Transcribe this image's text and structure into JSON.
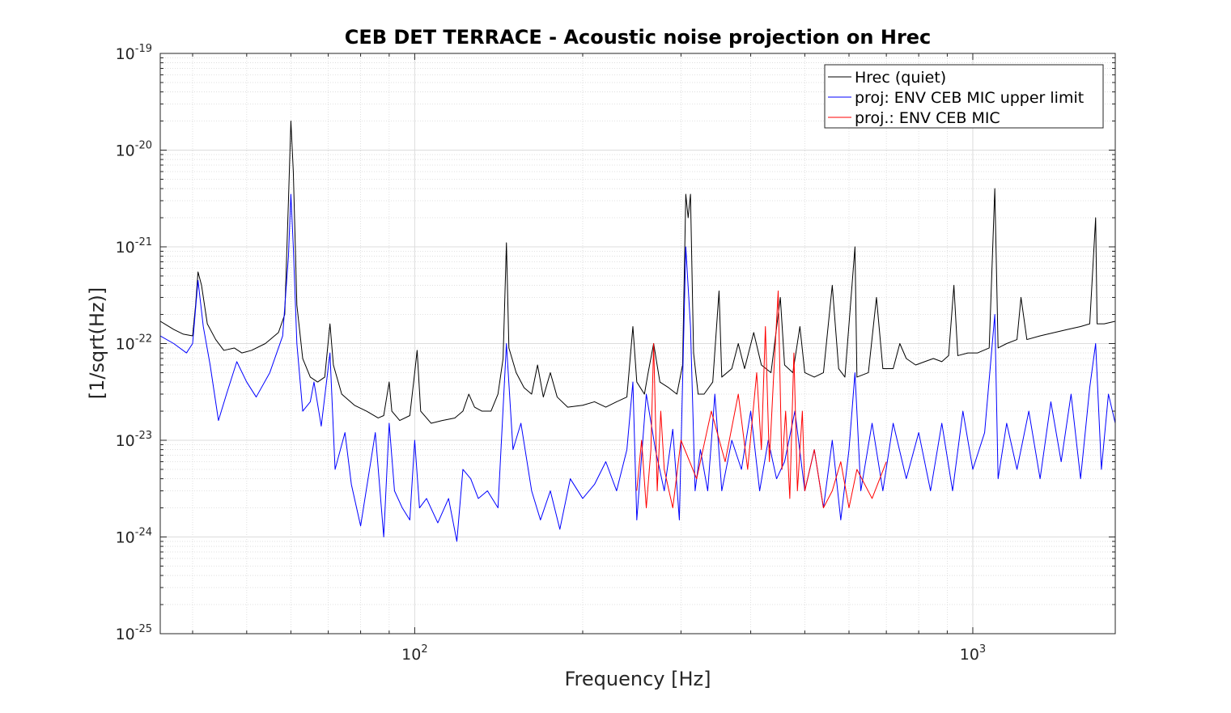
{
  "chart_data": {
    "type": "line",
    "title": "CEB DET TERRACE - Acoustic noise projection on Hrec",
    "xlabel": "Frequency [Hz]",
    "ylabel": "[1/sqrt(Hz)]",
    "xscale": "log",
    "yscale": "log",
    "xlim": [
      35,
      1800
    ],
    "ylim": [
      1e-25,
      1e-19
    ],
    "x_ticks": [
      {
        "value": 100,
        "base": "10",
        "exp": "2"
      },
      {
        "value": 1000,
        "base": "10",
        "exp": "3"
      }
    ],
    "y_ticks": [
      {
        "value": 1e-19,
        "base": "10",
        "exp": "-19"
      },
      {
        "value": 1e-20,
        "base": "10",
        "exp": "-20"
      },
      {
        "value": 1e-21,
        "base": "10",
        "exp": "-21"
      },
      {
        "value": 1e-22,
        "base": "10",
        "exp": "-22"
      },
      {
        "value": 1e-23,
        "base": "10",
        "exp": "-23"
      },
      {
        "value": 1e-24,
        "base": "10",
        "exp": "-24"
      },
      {
        "value": 1e-25,
        "base": "10",
        "exp": "-25"
      }
    ],
    "grid": true,
    "legend_position": "top-right",
    "series": [
      {
        "name": "Hrec (quiet)",
        "color": "#000000",
        "points": [
          [
            35,
            1.7e-22
          ],
          [
            37,
            1.4e-22
          ],
          [
            38.5,
            1.25e-22
          ],
          [
            40,
            1.2e-22
          ],
          [
            40.5,
            2.5e-22
          ],
          [
            40.9,
            5.5e-22
          ],
          [
            41.5,
            4e-22
          ],
          [
            42.5,
            1.6e-22
          ],
          [
            44,
            1.1e-22
          ],
          [
            45.5,
            8.5e-23
          ],
          [
            47.5,
            9e-23
          ],
          [
            49,
            8e-23
          ],
          [
            51,
            8.5e-23
          ],
          [
            54,
            1e-22
          ],
          [
            57,
            1.3e-22
          ],
          [
            58.5,
            2e-22
          ],
          [
            59.4,
            3e-21
          ],
          [
            60,
            2e-20
          ],
          [
            60.6,
            6e-21
          ],
          [
            61.5,
            2.5e-22
          ],
          [
            63,
            7e-23
          ],
          [
            65,
            4.5e-23
          ],
          [
            67,
            4e-23
          ],
          [
            69,
            4.5e-23
          ],
          [
            70.5,
            1.6e-22
          ],
          [
            71.5,
            6e-23
          ],
          [
            74,
            3e-23
          ],
          [
            78,
            2.3e-23
          ],
          [
            82,
            2e-23
          ],
          [
            86,
            1.7e-23
          ],
          [
            88,
            1.8e-23
          ],
          [
            90,
            4e-23
          ],
          [
            91,
            2e-23
          ],
          [
            94,
            1.6e-23
          ],
          [
            98,
            1.8e-23
          ],
          [
            100,
            5e-23
          ],
          [
            101,
            8.5e-23
          ],
          [
            102.5,
            2e-23
          ],
          [
            107,
            1.5e-23
          ],
          [
            112,
            1.6e-23
          ],
          [
            118,
            1.7e-23
          ],
          [
            122,
            2e-23
          ],
          [
            125,
            3e-23
          ],
          [
            128,
            2.2e-23
          ],
          [
            132,
            2e-23
          ],
          [
            137,
            2e-23
          ],
          [
            141,
            3e-23
          ],
          [
            144,
            7e-23
          ],
          [
            146,
            1.1e-21
          ],
          [
            147.5,
            9e-23
          ],
          [
            152,
            5e-23
          ],
          [
            157,
            3.5e-23
          ],
          [
            162,
            3e-23
          ],
          [
            166,
            6e-23
          ],
          [
            170,
            2.8e-23
          ],
          [
            175,
            5e-23
          ],
          [
            180,
            2.8e-23
          ],
          [
            188,
            2.2e-23
          ],
          [
            200,
            2.3e-23
          ],
          [
            210,
            2.5e-23
          ],
          [
            220,
            2.2e-23
          ],
          [
            230,
            2.5e-23
          ],
          [
            240,
            2.8e-23
          ],
          [
            246,
            1.5e-22
          ],
          [
            250,
            4e-23
          ],
          [
            258,
            3e-23
          ],
          [
            262,
            5e-23
          ],
          [
            268,
            1e-22
          ],
          [
            275,
            4e-23
          ],
          [
            285,
            3.5e-23
          ],
          [
            295,
            3e-23
          ],
          [
            302,
            6e-23
          ],
          [
            306,
            3.5e-21
          ],
          [
            309,
            2e-21
          ],
          [
            312,
            3.5e-21
          ],
          [
            316,
            8e-23
          ],
          [
            322,
            3e-23
          ],
          [
            330,
            3e-23
          ],
          [
            342,
            4e-23
          ],
          [
            351,
            3.5e-22
          ],
          [
            355,
            4.5e-23
          ],
          [
            370,
            5.5e-23
          ],
          [
            380,
            1e-22
          ],
          [
            390,
            5.5e-23
          ],
          [
            405,
            1.3e-22
          ],
          [
            418,
            6e-23
          ],
          [
            435,
            5e-23
          ],
          [
            452,
            3e-22
          ],
          [
            460,
            6e-23
          ],
          [
            476,
            5e-23
          ],
          [
            490,
            1.5e-22
          ],
          [
            500,
            5e-23
          ],
          [
            520,
            4.5e-23
          ],
          [
            540,
            5e-23
          ],
          [
            560,
            4e-22
          ],
          [
            575,
            5.5e-23
          ],
          [
            590,
            4.5e-23
          ],
          [
            615,
            1e-21
          ],
          [
            620,
            4.5e-23
          ],
          [
            650,
            5e-23
          ],
          [
            672,
            3e-22
          ],
          [
            690,
            5.5e-23
          ],
          [
            720,
            5.5e-23
          ],
          [
            740,
            1e-22
          ],
          [
            760,
            7e-23
          ],
          [
            790,
            6e-23
          ],
          [
            820,
            6.5e-23
          ],
          [
            850,
            7e-23
          ],
          [
            880,
            6.5e-23
          ],
          [
            905,
            7.5e-23
          ],
          [
            925,
            4e-22
          ],
          [
            940,
            7.5e-23
          ],
          [
            980,
            8e-23
          ],
          [
            1020,
            8e-23
          ],
          [
            1070,
            9e-23
          ],
          [
            1095,
            4e-21
          ],
          [
            1110,
            9e-23
          ],
          [
            1150,
            1e-22
          ],
          [
            1200,
            1.1e-22
          ],
          [
            1220,
            3e-22
          ],
          [
            1250,
            1.1e-22
          ],
          [
            1320,
            1.2e-22
          ],
          [
            1400,
            1.3e-22
          ],
          [
            1480,
            1.4e-22
          ],
          [
            1560,
            1.5e-22
          ],
          [
            1620,
            1.6e-22
          ],
          [
            1660,
            2e-21
          ],
          [
            1670,
            1.6e-22
          ],
          [
            1720,
            1.6e-22
          ],
          [
            1800,
            1.7e-22
          ]
        ]
      },
      {
        "name": "proj: ENV CEB MIC upper limit",
        "color": "#0000ff",
        "points": [
          [
            35,
            1.2e-22
          ],
          [
            37,
            1e-22
          ],
          [
            39,
            8e-23
          ],
          [
            40,
            1e-22
          ],
          [
            40.9,
            4.5e-22
          ],
          [
            41.8,
            1.5e-22
          ],
          [
            43,
            6e-23
          ],
          [
            44.5,
            1.6e-23
          ],
          [
            46,
            3e-23
          ],
          [
            48,
            6.5e-23
          ],
          [
            50,
            4e-23
          ],
          [
            52,
            2.8e-23
          ],
          [
            55,
            5e-23
          ],
          [
            58,
            1.2e-22
          ],
          [
            59.4,
            8e-22
          ],
          [
            60,
            3.5e-21
          ],
          [
            60.6,
            1e-21
          ],
          [
            61.5,
            1e-22
          ],
          [
            63,
            2e-23
          ],
          [
            65,
            2.5e-23
          ],
          [
            66,
            4e-23
          ],
          [
            68,
            1.4e-23
          ],
          [
            70.5,
            8e-23
          ],
          [
            72,
            5e-24
          ],
          [
            75,
            1.2e-23
          ],
          [
            77,
            3.5e-24
          ],
          [
            80,
            1.3e-24
          ],
          [
            83,
            5e-24
          ],
          [
            85,
            1.2e-23
          ],
          [
            88,
            1e-24
          ],
          [
            90,
            1.5e-23
          ],
          [
            92,
            3e-24
          ],
          [
            95,
            2e-24
          ],
          [
            98,
            1.5e-24
          ],
          [
            100,
            1e-23
          ],
          [
            102,
            2e-24
          ],
          [
            105,
            2.5e-24
          ],
          [
            110,
            1.4e-24
          ],
          [
            115,
            2.5e-24
          ],
          [
            119,
            9e-25
          ],
          [
            122,
            5e-24
          ],
          [
            126,
            4e-24
          ],
          [
            130,
            2.5e-24
          ],
          [
            135,
            3e-24
          ],
          [
            141,
            2e-24
          ],
          [
            146,
            1e-22
          ],
          [
            150,
            8e-24
          ],
          [
            155,
            1.5e-23
          ],
          [
            162,
            3e-24
          ],
          [
            168,
            1.5e-24
          ],
          [
            175,
            3e-24
          ],
          [
            182,
            1.2e-24
          ],
          [
            190,
            4e-24
          ],
          [
            200,
            2.5e-24
          ],
          [
            210,
            3.5e-24
          ],
          [
            220,
            6e-24
          ],
          [
            230,
            3e-24
          ],
          [
            240,
            8e-24
          ],
          [
            246,
            4e-23
          ],
          [
            250,
            1.5e-24
          ],
          [
            260,
            3e-23
          ],
          [
            270,
            8e-24
          ],
          [
            280,
            3e-24
          ],
          [
            290,
            1.3e-23
          ],
          [
            298,
            1.5e-24
          ],
          [
            306,
            1e-21
          ],
          [
            312,
            1.5e-22
          ],
          [
            318,
            3e-24
          ],
          [
            325,
            8e-24
          ],
          [
            335,
            3e-24
          ],
          [
            345,
            3e-23
          ],
          [
            355,
            3e-24
          ],
          [
            370,
            1e-23
          ],
          [
            385,
            5e-24
          ],
          [
            400,
            2e-23
          ],
          [
            415,
            3e-24
          ],
          [
            430,
            1e-23
          ],
          [
            445,
            4e-24
          ],
          [
            460,
            6e-24
          ],
          [
            480,
            2e-23
          ],
          [
            500,
            3e-24
          ],
          [
            520,
            8e-24
          ],
          [
            540,
            2e-24
          ],
          [
            560,
            1e-23
          ],
          [
            580,
            1.5e-24
          ],
          [
            600,
            8e-24
          ],
          [
            615,
            5e-23
          ],
          [
            630,
            3e-24
          ],
          [
            660,
            1.5e-23
          ],
          [
            690,
            3e-24
          ],
          [
            720,
            1.5e-23
          ],
          [
            760,
            4e-24
          ],
          [
            800,
            1.2e-23
          ],
          [
            840,
            3e-24
          ],
          [
            880,
            1.5e-23
          ],
          [
            920,
            3e-24
          ],
          [
            960,
            2e-23
          ],
          [
            1000,
            5e-24
          ],
          [
            1050,
            1.2e-23
          ],
          [
            1095,
            2e-22
          ],
          [
            1110,
            4e-24
          ],
          [
            1150,
            1.5e-23
          ],
          [
            1200,
            5e-24
          ],
          [
            1260,
            2e-23
          ],
          [
            1320,
            4e-24
          ],
          [
            1380,
            2.5e-23
          ],
          [
            1440,
            6e-24
          ],
          [
            1500,
            3e-23
          ],
          [
            1560,
            4e-24
          ],
          [
            1620,
            3.5e-23
          ],
          [
            1660,
            1e-22
          ],
          [
            1700,
            5e-24
          ],
          [
            1750,
            3e-23
          ],
          [
            1800,
            1.5e-23
          ]
        ]
      },
      {
        "name": "proj.: ENV CEB MIC",
        "color": "#ff0000",
        "points": [
          [
            250,
            3e-24
          ],
          [
            255,
            1e-23
          ],
          [
            260,
            2e-24
          ],
          [
            265,
            8e-24
          ],
          [
            268,
            1e-22
          ],
          [
            272,
            3e-24
          ],
          [
            276,
            2e-23
          ],
          [
            280,
            5e-24
          ],
          [
            290,
            2e-24
          ],
          [
            300,
            1e-23
          ],
          [
            320,
            4e-24
          ],
          [
            340,
            2e-23
          ],
          [
            360,
            6e-24
          ],
          [
            380,
            3e-23
          ],
          [
            395,
            5e-24
          ],
          [
            410,
            5e-23
          ],
          [
            418,
            8e-24
          ],
          [
            425,
            1.5e-22
          ],
          [
            432,
            6e-24
          ],
          [
            440,
            5e-23
          ],
          [
            448,
            3.5e-22
          ],
          [
            455,
            5e-24
          ],
          [
            462,
            2e-23
          ],
          [
            470,
            2.5e-24
          ],
          [
            478,
            8e-23
          ],
          [
            485,
            3e-24
          ],
          [
            495,
            2e-23
          ],
          [
            500,
            3e-24
          ],
          [
            520,
            8e-24
          ],
          [
            540,
            2e-24
          ],
          [
            560,
            3e-24
          ],
          [
            580,
            6e-24
          ],
          [
            600,
            2e-24
          ],
          [
            620,
            5e-24
          ],
          [
            660,
            2.5e-24
          ],
          [
            700,
            6e-24
          ]
        ]
      }
    ]
  }
}
